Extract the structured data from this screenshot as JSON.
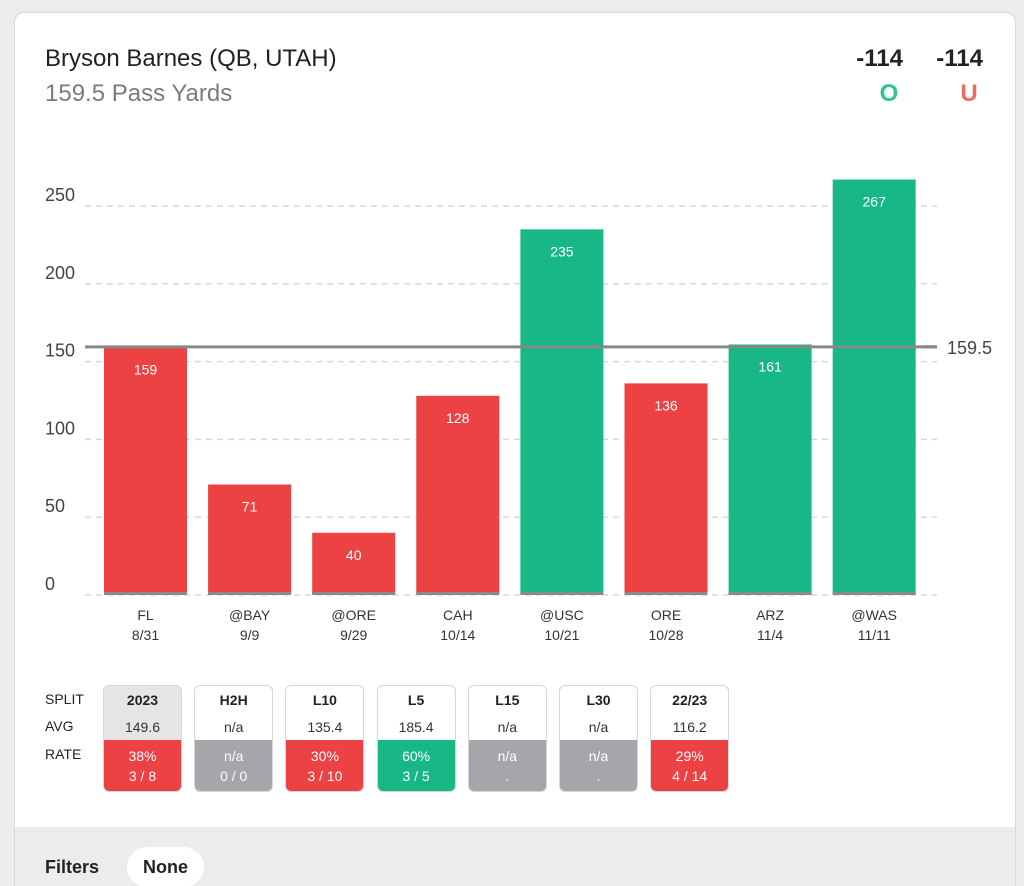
{
  "header": {
    "player": "Bryson Barnes (QB, UTAH)",
    "prop": "159.5 Pass Yards",
    "over_odds": "-114",
    "under_odds": "-114",
    "over_label": "O",
    "under_label": "U"
  },
  "colors": {
    "over": "#17b886",
    "under": "#ec4244",
    "line": "#888888",
    "grid": "#d9d9d9"
  },
  "chart_data": {
    "type": "bar",
    "categories": [
      "FL",
      "@BAY",
      "@ORE",
      "CAH",
      "@USC",
      "ORE",
      "ARZ",
      "@WAS"
    ],
    "dates": [
      "8/31",
      "9/9",
      "9/29",
      "10/14",
      "10/21",
      "10/28",
      "11/4",
      "11/11"
    ],
    "values": [
      159,
      71,
      40,
      128,
      235,
      136,
      161,
      267
    ],
    "line_value": 159.5,
    "line_label": "159.5",
    "yticks": [
      0,
      50,
      100,
      150,
      200,
      250
    ],
    "ylim": [
      0,
      250
    ],
    "grid": true
  },
  "splits": {
    "row_labels": {
      "split": "SPLIT",
      "avg": "AVG",
      "rate": "RATE"
    },
    "items": [
      {
        "label": "2023",
        "avg": "149.6",
        "pct": "38%",
        "record": "3 / 8",
        "status": "red",
        "active": true
      },
      {
        "label": "H2H",
        "avg": "n/a",
        "pct": "n/a",
        "record": "0 / 0",
        "status": "gray",
        "active": false
      },
      {
        "label": "L10",
        "avg": "135.4",
        "pct": "30%",
        "record": "3 / 10",
        "status": "red",
        "active": false
      },
      {
        "label": "L5",
        "avg": "185.4",
        "pct": "60%",
        "record": "3 / 5",
        "status": "green",
        "active": false
      },
      {
        "label": "L15",
        "avg": "n/a",
        "pct": "n/a",
        "record": ".",
        "status": "gray",
        "active": false
      },
      {
        "label": "L30",
        "avg": "n/a",
        "pct": "n/a",
        "record": ".",
        "status": "gray",
        "active": false
      },
      {
        "label": "22/23",
        "avg": "116.2",
        "pct": "29%",
        "record": "4 / 14",
        "status": "red",
        "active": false
      }
    ]
  },
  "filters": {
    "label": "Filters",
    "value": "None"
  }
}
